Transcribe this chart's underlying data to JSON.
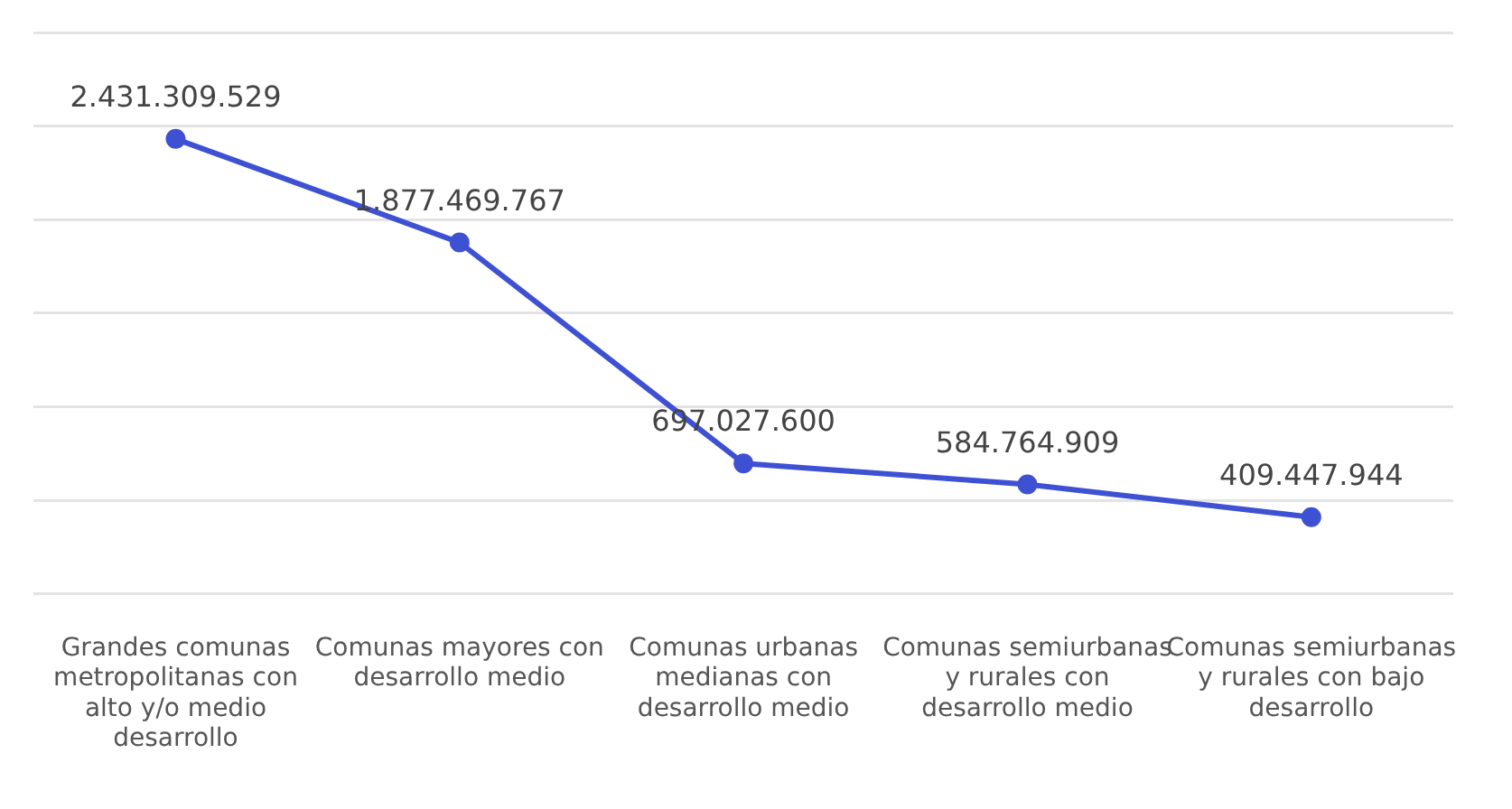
{
  "chart_data": {
    "type": "line",
    "categories": [
      "Grandes comunas metropolitanas con alto y/o medio desarrollo",
      "Comunas mayores con desarrollo medio",
      "Comunas urbanas medianas con desarrollo medio",
      "Comunas semiurbanas y rurales con desarrollo medio",
      "Comunas semiurbanas y rurales con bajo desarrollo"
    ],
    "series": [
      {
        "color": "#3f51d3",
        "values": [
          2431309529,
          1877469767,
          697027600,
          584764909,
          409447944
        ],
        "value_labels": [
          "2.431.309.529",
          "1.877.469.767",
          "697.027.600",
          "584.764.909",
          "409.447.944"
        ]
      }
    ],
    "ylim": [
      0,
      3000000000
    ],
    "yticks": [
      {
        "value": 0,
        "label": null
      },
      {
        "value": 500000000,
        "label": null
      },
      {
        "value": 1000000000,
        "label": null
      },
      {
        "value": 1500000000,
        "label": null
      },
      {
        "value": 2000000000,
        "label": null
      },
      {
        "value": 2500000000,
        "label": null
      },
      {
        "value": 3000000000,
        "label": null
      }
    ],
    "tick_labels": "x",
    "grid": "y",
    "marker": "circle",
    "line_style": "solid",
    "legend": false
  }
}
